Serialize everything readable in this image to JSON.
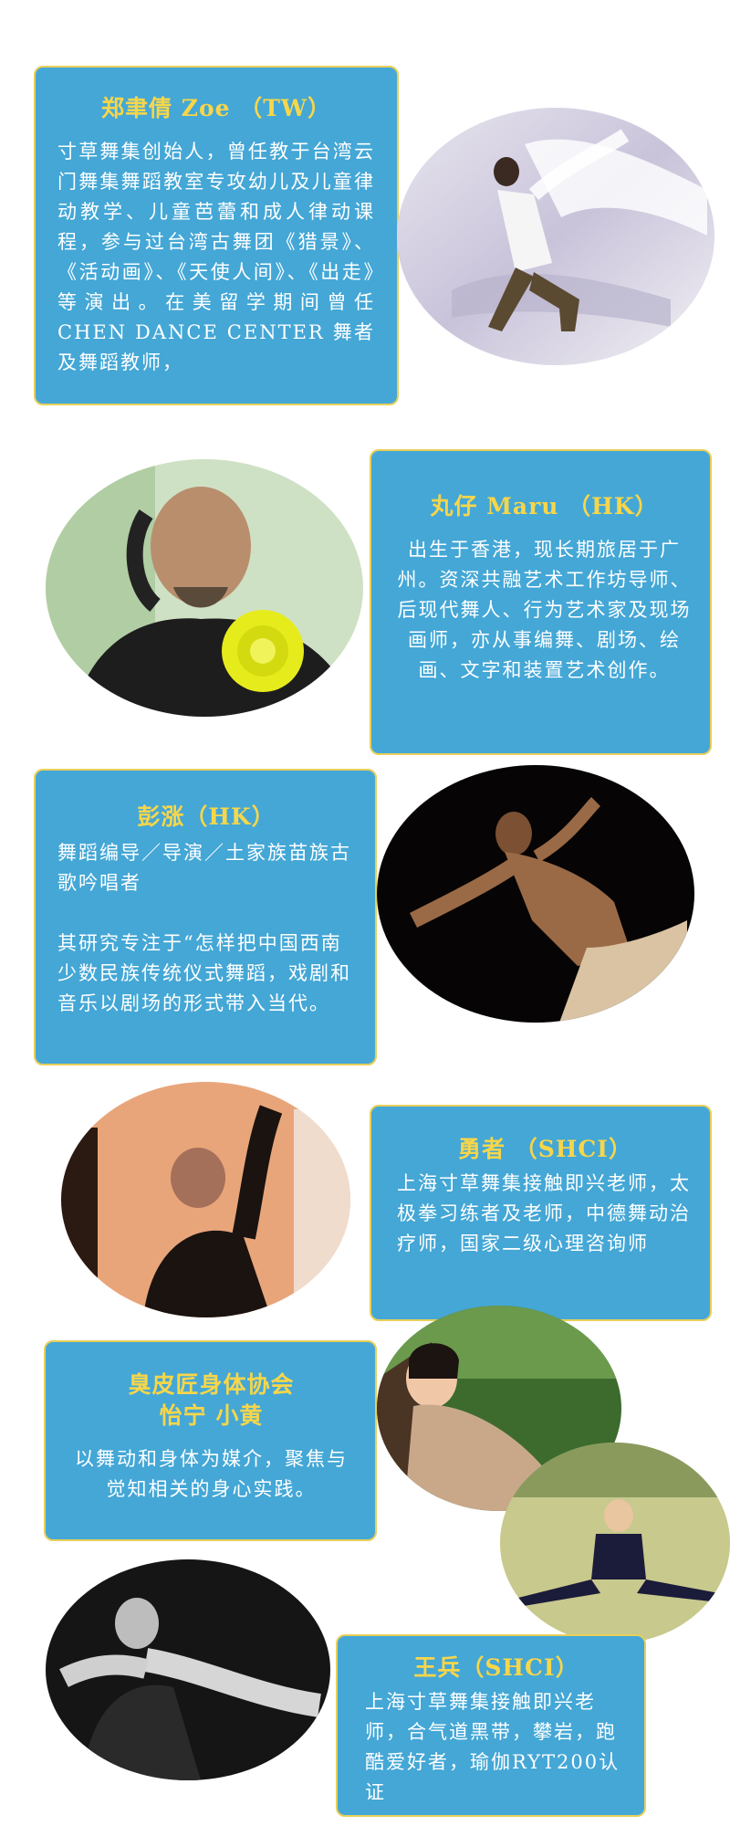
{
  "profiles": [
    {
      "name": "郑聿倩 Zoe （TW）",
      "bio": "寸草舞集创始人，曾任教于台湾云门舞集舞蹈教室专攻幼儿及儿童律动教学、儿童芭蕾和成人律动课程，参与过台湾古舞团《猎景》、《活动画》、《天使人间》、《出走》等演出。在美留学期间曾任CHEN DANCE CENTER 舞者及舞蹈教师，"
    },
    {
      "name": "丸仔 Maru （HK）",
      "bio": "出生于香港，现长期旅居于广州。资深共融艺术工作坊导师、后现代舞人、行为艺术家及现场画师，亦从事编舞、剧场、绘画、文字和装置艺术创作。"
    },
    {
      "name": "彭涨（HK）",
      "bio": "舞蹈编导／导演／土家族苗族古歌吟唱者",
      "bio2": "其研究专注于“怎样把中国西南少数民族传统仪式舞蹈，戏剧和音乐以剧场的形式带入当代。"
    },
    {
      "name": "勇者 （SHCI）",
      "bio": "上海寸草舞集接触即兴老师，太极拳习练者及老师，中德舞动治疗师，国家二级心理咨询师"
    },
    {
      "name": "臭皮匠身体协会",
      "name2": "怡宁 小黄",
      "bio": "以舞动和身体为媒介，聚焦与觉知相关的身心实践。"
    },
    {
      "name": "王兵（SHCI）",
      "bio": "上海寸草舞集接触即兴老师，合气道黑带，攀岩，跑酷爱好者，瑜伽RYT200认证"
    }
  ],
  "colors": {
    "card_bg": "#44a7d6",
    "card_border": "#e8cf5a",
    "name_color": "#f7d64a",
    "bio_color": "#ffffff"
  }
}
